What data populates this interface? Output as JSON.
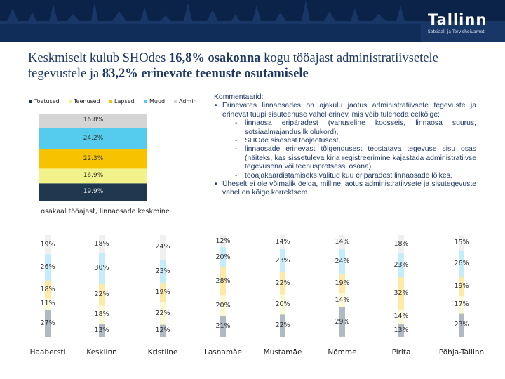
{
  "header": {
    "logo": "Tallinn",
    "subtitle": "Sotsiaal- ja Tervishoiuamet"
  },
  "title": {
    "part1": "Keskmiselt kulub SHOdes ",
    "bold1": "16,8% osakonna",
    "part2": " kogu tööajast administratiivsetele tegevustele ja ",
    "bold2": "83,2% erinevate teenuste osutamisele"
  },
  "comments": {
    "heading": "Kommentaarid:",
    "bullet1": "Erinevates linnaosades on ajakulu jaotus administratiivsete tegevuste ja erinevat tüüpi sisuteenuse vahel erinev, mis võib tuleneda eelkõige:",
    "sub1": "linnaosa eripäradest (vanuseline koosseis, linnaosa suurus, sotsiaalmajandusilk olukord),",
    "sub2": "SHOde sisesest tööjaotusest,",
    "sub3": "linnaosade erinevast tõlgendusest teostatava tegevuse sisu osas (näiteks, kas sissetuleva kirja registreerimine kajastada administratiivse tegevusena või teenusprotsessi osana),",
    "sub4": "tööajakaardistamiseks valitud kuu eripäradest linnaosade lõikes.",
    "bullet2": "Üheselt ei ole võimalik öelda, milline jaotus administratiivsete ja sisutegevuste vahel on kõige korrektsem."
  },
  "colors": {
    "banner": "#0b2348",
    "Toetused": "#1f3850",
    "Teenused": "#f2f28a",
    "Lapsed": "#f7c300",
    "Muud": "#55ccee",
    "Admin": "#d5d5d5"
  },
  "chart_data": [
    {
      "type": "bar",
      "subtype": "stacked-single",
      "title": "osakaal tööajast, linnaosade keskmine",
      "legend": [
        "Toetused",
        "Teenused",
        "Lapsed",
        "Muud",
        "Admin"
      ],
      "stack_order_bottom_to_top": [
        "Toetused",
        "Teenused",
        "Lapsed",
        "Muud",
        "Admin"
      ],
      "values": {
        "Toetused": 19.9,
        "Teenused": 16.9,
        "Lapsed": 22.3,
        "Muud": 24.2,
        "Admin": 16.8
      },
      "labels": {
        "Toetused": "19.9%",
        "Teenused": "16.9%",
        "Lapsed": "22.3%",
        "Muud": "24.2%",
        "Admin": "16.8%"
      }
    },
    {
      "type": "bar",
      "subtype": "stacked-100",
      "categories": [
        "Haabersti",
        "Kesklinn",
        "Kristiine",
        "Lasnamäe",
        "Mustamäe",
        "Nõmme",
        "Pirita",
        "Põhja-Tallinn"
      ],
      "stack_order_bottom_to_top": [
        "Toetused",
        "Teenused",
        "Lapsed",
        "Muud",
        "Admin"
      ],
      "series": [
        {
          "name": "Toetused",
          "values": [
            27,
            13,
            12,
            21,
            22,
            29,
            13,
            23
          ],
          "labels": [
            "27%",
            "13%",
            "12%",
            "21%",
            "22%",
            "29%",
            "13%",
            "23%"
          ]
        },
        {
          "name": "Teenused",
          "values": [
            11,
            18,
            22,
            20,
            20,
            14,
            14,
            17
          ],
          "labels": [
            "11%",
            "18%",
            "22%",
            "20%",
            "20%",
            "14%",
            "14%",
            "17%"
          ]
        },
        {
          "name": "Lapsed",
          "values": [
            18,
            22,
            19,
            28,
            22,
            19,
            32,
            19
          ],
          "labels": [
            "18%",
            "22%",
            "19%",
            "28%",
            "22%",
            "19%",
            "32%",
            "19%"
          ]
        },
        {
          "name": "Muud",
          "values": [
            26,
            30,
            23,
            20,
            23,
            24,
            23,
            26
          ],
          "labels": [
            "26%",
            "30%",
            "23%",
            "20%",
            "23%",
            "24%",
            "23%",
            "26%"
          ]
        },
        {
          "name": "Admin",
          "values": [
            19,
            18,
            24,
            12,
            14,
            14,
            18,
            15
          ],
          "labels": [
            "19%",
            "18%",
            "24%",
            "12%",
            "14%",
            "14%",
            "18%",
            "15%"
          ]
        }
      ]
    }
  ]
}
